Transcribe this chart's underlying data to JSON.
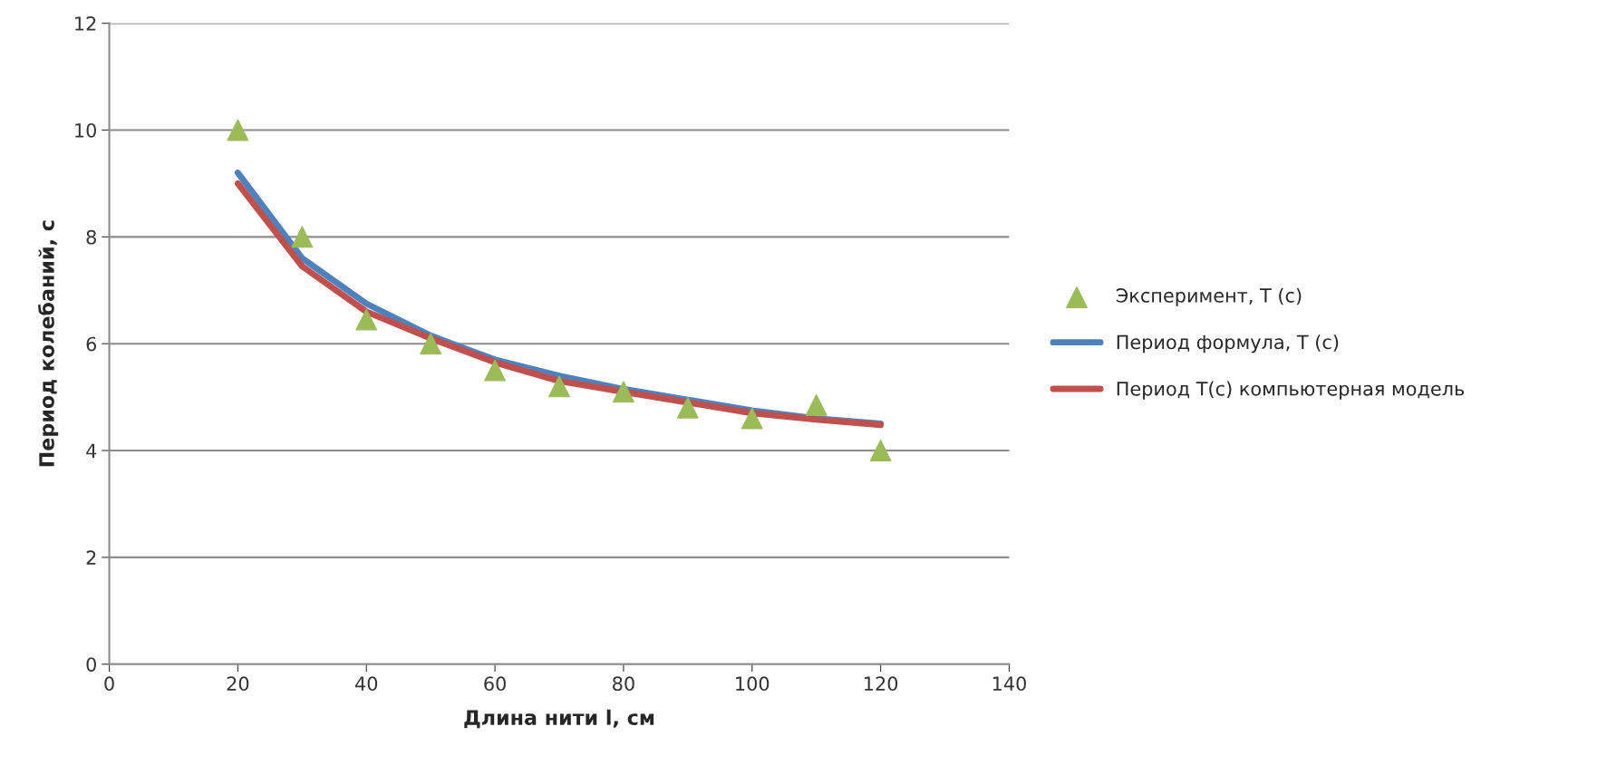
{
  "chart_data": {
    "type": "line",
    "xlabel": "Длина нити l, см",
    "ylabel": "Период колебаний, с",
    "x": [
      20,
      30,
      40,
      50,
      60,
      70,
      80,
      90,
      100,
      110,
      120
    ],
    "series": [
      {
        "name": "Эксперимент, T (c)",
        "type": "scatter",
        "color": "#9bbb59",
        "marker": "triangle",
        "values": [
          10,
          8,
          6.45,
          6,
          5.5,
          5.2,
          5.1,
          4.8,
          4.6,
          4.85,
          4.0
        ]
      },
      {
        "name": "Период формула, T (c)",
        "color": "#4f81bd",
        "marker": "none",
        "values": [
          9.2,
          7.6,
          6.75,
          6.15,
          5.7,
          5.4,
          5.15,
          4.95,
          4.75,
          4.6,
          4.5
        ]
      },
      {
        "name": "Период T(c) компьютерная модель",
        "color": "#c0504d",
        "marker": "none",
        "values": [
          9.0,
          7.45,
          6.6,
          6.1,
          5.65,
          5.3,
          5.1,
          4.9,
          4.7,
          4.58,
          4.48
        ]
      }
    ],
    "xlim": [
      0,
      140
    ],
    "xticks": [
      0,
      20,
      40,
      60,
      80,
      100,
      120,
      140
    ],
    "ylim": [
      0,
      12
    ],
    "yticks": [
      0,
      2,
      4,
      6,
      8,
      10,
      12
    ],
    "grid": "y",
    "legend": "right"
  }
}
